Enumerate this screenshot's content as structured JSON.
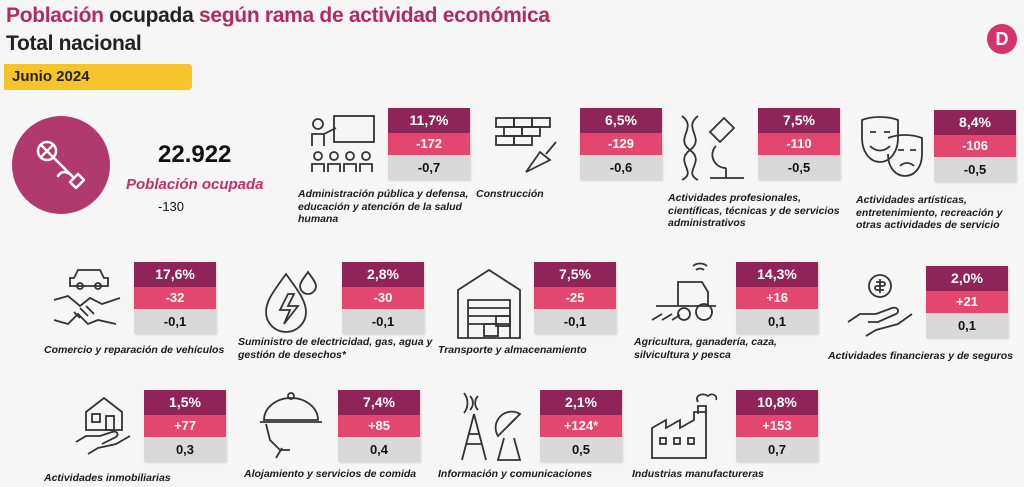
{
  "header": {
    "title_part1": "Población",
    "title_part2": "ocupada",
    "title_part3": "según rama de actividad económica",
    "subtitle": "Total nacional",
    "date": "Junio 2024",
    "logo": "D"
  },
  "total": {
    "value": "22.922",
    "label": "Población ocupada",
    "change": "-130",
    "icon": "wrench-hand-icon"
  },
  "sectors": [
    {
      "label": "Administración pública y defensa, educación y atención de la salud humana",
      "share": "11,7%",
      "change": "-172",
      "pct": "-0,7",
      "icon": "teacher-classroom-icon"
    },
    {
      "label": "Construcción",
      "share": "6,5%",
      "change": "-129",
      "pct": "-0,6",
      "icon": "bricks-trowel-icon"
    },
    {
      "label": "Actividades profesionales, científicas, técnicas y de servicios administrativos",
      "share": "7,5%",
      "change": "-110",
      "pct": "-0,5",
      "icon": "dna-microscope-icon"
    },
    {
      "label": "Actividades artísticas, entretenimiento, recreación y otras actividades de servicio",
      "share": "8,4%",
      "change": "-106",
      "pct": "-0,5",
      "icon": "theater-masks-icon"
    },
    {
      "label": "Comercio y reparación de vehículos",
      "share": "17,6%",
      "change": "-32",
      "pct": "-0,1",
      "icon": "handshake-car-icon"
    },
    {
      "label": "Suministro de electricidad, gas, agua y gestión de desechos*",
      "share": "2,8%",
      "change": "-30",
      "pct": "-0,1",
      "icon": "drop-bolt-icon"
    },
    {
      "label": "Transporte y almacenamiento",
      "share": "7,5%",
      "change": "-25",
      "pct": "-0,1",
      "icon": "warehouse-icon"
    },
    {
      "label": "Agricultura, ganadería, caza, silvicultura y pesca",
      "share": "14,3%",
      "change": "+16",
      "pct": "0,1",
      "icon": "tractor-icon"
    },
    {
      "label": "Actividades financieras y de seguros",
      "share": "2,0%",
      "change": "+21",
      "pct": "0,1",
      "icon": "hand-coin-icon"
    },
    {
      "label": "Actividades inmobiliarias",
      "share": "1,5%",
      "change": "+77",
      "pct": "0,3",
      "icon": "hand-house-icon"
    },
    {
      "label": "Alojamiento y servicios de comida",
      "share": "7,4%",
      "change": "+85",
      "pct": "0,4",
      "icon": "cloche-icon"
    },
    {
      "label": "Información y comunicaciones",
      "share": "2,1%",
      "change": "+124*",
      "pct": "0,5",
      "icon": "antenna-satellite-icon"
    },
    {
      "label": "Industrias manufactureras",
      "share": "10,8%",
      "change": "+153",
      "pct": "0,7",
      "icon": "factory-icon"
    }
  ],
  "colors": {
    "accent": "#b0396e",
    "dark_tile": "#8f2458",
    "mid_tile": "#e3466f",
    "light_tile": "#d9d9d9",
    "badge": "#f7c32b"
  }
}
